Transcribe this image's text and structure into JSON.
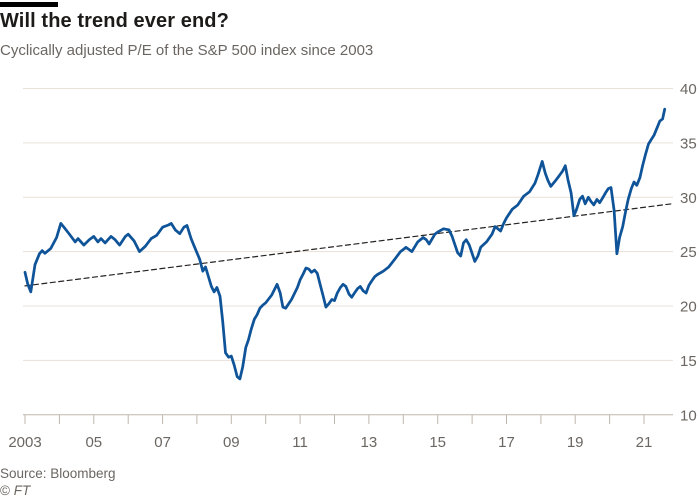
{
  "header": {
    "title": "Will the trend ever end?",
    "subtitle": "Cyclically adjusted P/E of the S&P 500 index since 2003"
  },
  "footer": {
    "source": "Source: Bloomberg",
    "copyright_symbol": "©",
    "copyright_mark": "FT"
  },
  "chart_data": {
    "type": "line",
    "title": "Will the trend ever end?",
    "subtitle": "Cyclically adjusted P/E of the S&P 500 index since 2003",
    "source": "Source: Bloomberg",
    "xlim": [
      2003,
      2021.85
    ],
    "ylim": [
      10,
      40
    ],
    "grid": "horizontal",
    "legend_position": "none",
    "y_axis_side": "right",
    "y_ticks": [
      10,
      15,
      20,
      25,
      30,
      35,
      40
    ],
    "x_ticks": [
      {
        "label": "2003",
        "year": 2003
      },
      {
        "label": "05",
        "year": 2005
      },
      {
        "label": "07",
        "year": 2007
      },
      {
        "label": "09",
        "year": 2009
      },
      {
        "label": "11",
        "year": 2011
      },
      {
        "label": "13",
        "year": 2013
      },
      {
        "label": "15",
        "year": 2015
      },
      {
        "label": "17",
        "year": 2017
      },
      {
        "label": "19",
        "year": 2019
      },
      {
        "label": "21",
        "year": 2021
      }
    ],
    "x_minor_ticks": [
      2003,
      2004,
      2005,
      2006,
      2007,
      2008,
      2009,
      2010,
      2011,
      2012,
      2013,
      2014,
      2015,
      2016,
      2017,
      2018,
      2019,
      2020,
      2021
    ],
    "colors": {
      "line": "#0f5499",
      "trend": "#262220",
      "grid": "#e9e1d7",
      "axis": "#bfb7ac",
      "text_gray": "#6b6661",
      "text_dark": "#1d1b19"
    },
    "series": [
      {
        "name": "Cyclically adjusted P/E (CAPE)",
        "style": "solid",
        "color": "#0f5499",
        "width": 2.75,
        "points": [
          [
            2003.0,
            23.1
          ],
          [
            2003.08,
            22.0
          ],
          [
            2003.17,
            21.3
          ],
          [
            2003.29,
            23.8
          ],
          [
            2003.42,
            24.8
          ],
          [
            2003.5,
            25.1
          ],
          [
            2003.58,
            24.85
          ],
          [
            2003.75,
            25.3
          ],
          [
            2003.92,
            26.3
          ],
          [
            2004.04,
            27.6
          ],
          [
            2004.17,
            27.1
          ],
          [
            2004.29,
            26.6
          ],
          [
            2004.46,
            25.9
          ],
          [
            2004.54,
            26.2
          ],
          [
            2004.71,
            25.6
          ],
          [
            2004.87,
            26.1
          ],
          [
            2005.0,
            26.4
          ],
          [
            2005.12,
            25.9
          ],
          [
            2005.21,
            26.2
          ],
          [
            2005.33,
            25.8
          ],
          [
            2005.5,
            26.4
          ],
          [
            2005.62,
            26.1
          ],
          [
            2005.75,
            25.6
          ],
          [
            2005.92,
            26.4
          ],
          [
            2006.0,
            26.6
          ],
          [
            2006.17,
            26.0
          ],
          [
            2006.33,
            25.0
          ],
          [
            2006.5,
            25.5
          ],
          [
            2006.67,
            26.2
          ],
          [
            2006.83,
            26.5
          ],
          [
            2007.0,
            27.25
          ],
          [
            2007.17,
            27.45
          ],
          [
            2007.25,
            27.6
          ],
          [
            2007.37,
            27.0
          ],
          [
            2007.5,
            26.65
          ],
          [
            2007.62,
            27.25
          ],
          [
            2007.71,
            27.4
          ],
          [
            2007.83,
            26.2
          ],
          [
            2007.92,
            25.5
          ],
          [
            2008.08,
            24.3
          ],
          [
            2008.17,
            23.2
          ],
          [
            2008.25,
            23.6
          ],
          [
            2008.42,
            21.8
          ],
          [
            2008.5,
            21.3
          ],
          [
            2008.58,
            21.7
          ],
          [
            2008.67,
            20.9
          ],
          [
            2008.75,
            18.6
          ],
          [
            2008.83,
            15.7
          ],
          [
            2008.92,
            15.3
          ],
          [
            2009.0,
            15.4
          ],
          [
            2009.08,
            14.6
          ],
          [
            2009.17,
            13.5
          ],
          [
            2009.25,
            13.3
          ],
          [
            2009.33,
            14.4
          ],
          [
            2009.42,
            16.2
          ],
          [
            2009.5,
            16.9
          ],
          [
            2009.58,
            17.9
          ],
          [
            2009.67,
            18.8
          ],
          [
            2009.75,
            19.2
          ],
          [
            2009.83,
            19.8
          ],
          [
            2009.92,
            20.1
          ],
          [
            2010.0,
            20.3
          ],
          [
            2010.17,
            21.0
          ],
          [
            2010.33,
            22.0
          ],
          [
            2010.42,
            21.2
          ],
          [
            2010.5,
            19.9
          ],
          [
            2010.58,
            19.8
          ],
          [
            2010.75,
            20.6
          ],
          [
            2010.92,
            21.7
          ],
          [
            2011.0,
            22.4
          ],
          [
            2011.08,
            22.9
          ],
          [
            2011.17,
            23.5
          ],
          [
            2011.25,
            23.4
          ],
          [
            2011.33,
            23.1
          ],
          [
            2011.42,
            23.3
          ],
          [
            2011.5,
            23.0
          ],
          [
            2011.58,
            22.0
          ],
          [
            2011.67,
            20.9
          ],
          [
            2011.75,
            19.9
          ],
          [
            2011.83,
            20.2
          ],
          [
            2011.92,
            20.6
          ],
          [
            2012.0,
            20.5
          ],
          [
            2012.08,
            21.2
          ],
          [
            2012.17,
            21.7
          ],
          [
            2012.25,
            22.0
          ],
          [
            2012.33,
            21.8
          ],
          [
            2012.42,
            21.1
          ],
          [
            2012.5,
            20.8
          ],
          [
            2012.58,
            21.2
          ],
          [
            2012.67,
            21.6
          ],
          [
            2012.75,
            21.8
          ],
          [
            2012.83,
            21.4
          ],
          [
            2012.92,
            21.2
          ],
          [
            2013.0,
            21.9
          ],
          [
            2013.08,
            22.3
          ],
          [
            2013.17,
            22.7
          ],
          [
            2013.25,
            22.9
          ],
          [
            2013.42,
            23.2
          ],
          [
            2013.58,
            23.6
          ],
          [
            2013.75,
            24.3
          ],
          [
            2013.92,
            25.0
          ],
          [
            2014.0,
            25.2
          ],
          [
            2014.08,
            25.4
          ],
          [
            2014.25,
            25.0
          ],
          [
            2014.42,
            25.9
          ],
          [
            2014.58,
            26.3
          ],
          [
            2014.67,
            26.1
          ],
          [
            2014.75,
            25.7
          ],
          [
            2014.92,
            26.6
          ],
          [
            2015.0,
            26.8
          ],
          [
            2015.17,
            27.1
          ],
          [
            2015.33,
            27.0
          ],
          [
            2015.42,
            26.4
          ],
          [
            2015.58,
            24.9
          ],
          [
            2015.67,
            24.6
          ],
          [
            2015.75,
            25.8
          ],
          [
            2015.83,
            26.1
          ],
          [
            2015.92,
            25.6
          ],
          [
            2016.08,
            24.1
          ],
          [
            2016.17,
            24.6
          ],
          [
            2016.25,
            25.4
          ],
          [
            2016.42,
            25.9
          ],
          [
            2016.58,
            26.6
          ],
          [
            2016.67,
            27.3
          ],
          [
            2016.83,
            26.9
          ],
          [
            2016.92,
            27.6
          ],
          [
            2017.0,
            28.1
          ],
          [
            2017.17,
            28.9
          ],
          [
            2017.33,
            29.3
          ],
          [
            2017.5,
            30.1
          ],
          [
            2017.67,
            30.5
          ],
          [
            2017.83,
            31.3
          ],
          [
            2017.92,
            32.1
          ],
          [
            2018.04,
            33.3
          ],
          [
            2018.13,
            32.2
          ],
          [
            2018.21,
            31.5
          ],
          [
            2018.29,
            31.0
          ],
          [
            2018.42,
            31.5
          ],
          [
            2018.54,
            32.0
          ],
          [
            2018.63,
            32.4
          ],
          [
            2018.71,
            32.9
          ],
          [
            2018.79,
            31.6
          ],
          [
            2018.88,
            30.4
          ],
          [
            2018.96,
            28.3
          ],
          [
            2019.04,
            28.9
          ],
          [
            2019.13,
            29.8
          ],
          [
            2019.21,
            30.1
          ],
          [
            2019.29,
            29.4
          ],
          [
            2019.38,
            30.0
          ],
          [
            2019.46,
            29.6
          ],
          [
            2019.54,
            29.3
          ],
          [
            2019.63,
            29.8
          ],
          [
            2019.71,
            29.5
          ],
          [
            2019.79,
            29.9
          ],
          [
            2019.88,
            30.4
          ],
          [
            2019.96,
            30.8
          ],
          [
            2020.04,
            30.9
          ],
          [
            2020.13,
            28.8
          ],
          [
            2020.21,
            24.8
          ],
          [
            2020.29,
            26.3
          ],
          [
            2020.38,
            27.3
          ],
          [
            2020.46,
            28.6
          ],
          [
            2020.54,
            29.8
          ],
          [
            2020.63,
            30.8
          ],
          [
            2020.71,
            31.4
          ],
          [
            2020.79,
            31.1
          ],
          [
            2020.88,
            31.8
          ],
          [
            2020.96,
            32.9
          ],
          [
            2021.04,
            33.9
          ],
          [
            2021.13,
            34.9
          ],
          [
            2021.21,
            35.3
          ],
          [
            2021.29,
            35.7
          ],
          [
            2021.37,
            36.3
          ],
          [
            2021.46,
            37.0
          ],
          [
            2021.54,
            37.2
          ],
          [
            2021.6,
            38.1
          ]
        ]
      },
      {
        "name": "Trend line",
        "style": "dashed",
        "color": "#262220",
        "width": 1.2,
        "points": [
          [
            2003.0,
            21.85
          ],
          [
            2021.81,
            29.4
          ]
        ]
      }
    ]
  }
}
